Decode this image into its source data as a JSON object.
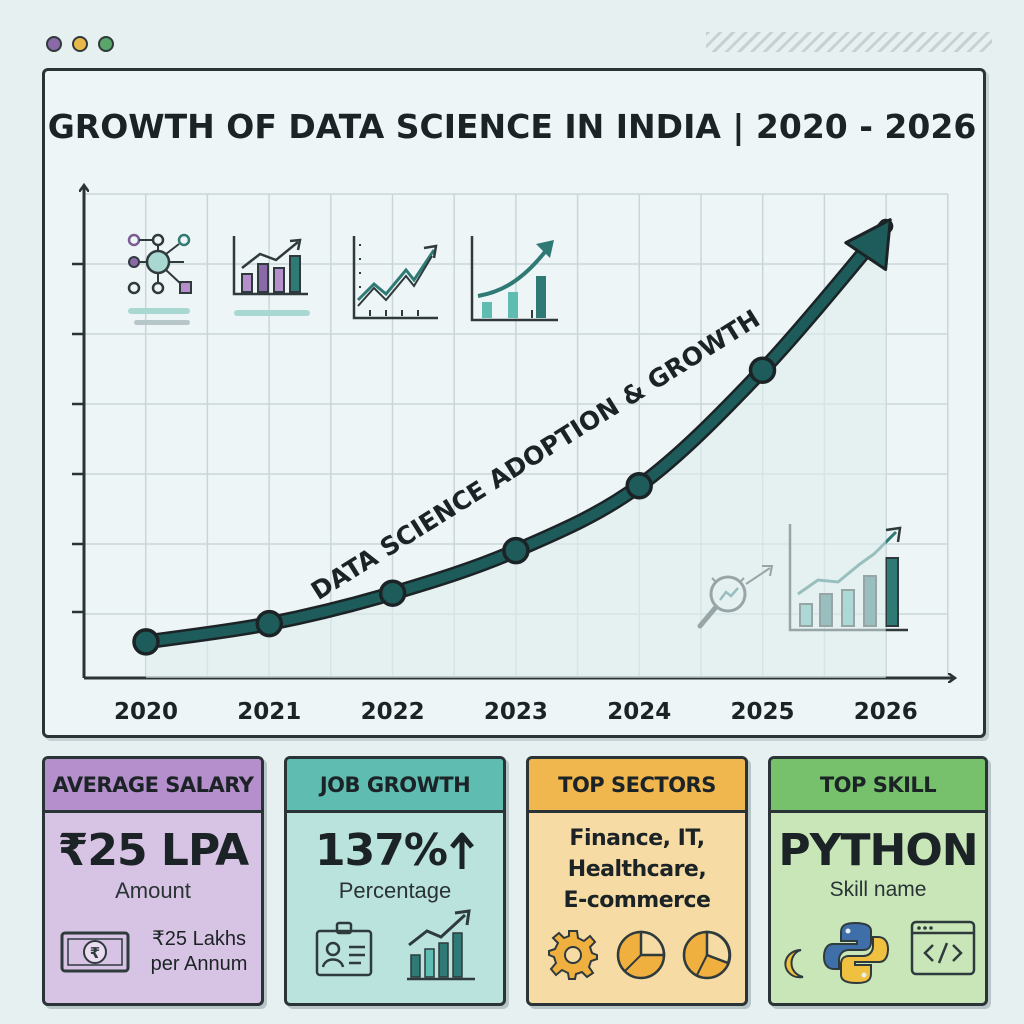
{
  "window": {
    "dot_colors": [
      "#8a6aa6",
      "#e8b84a",
      "#5aa56a"
    ]
  },
  "chart_data": {
    "type": "line",
    "title": "GROWTH OF DATA SCIENCE IN INDIA | 2020 - 2026",
    "annotation": "DATA SCIENCE ADOPTION & GROWTH",
    "x": [
      "2020",
      "2021",
      "2022",
      "2023",
      "2024",
      "2025",
      "2026"
    ],
    "series": [
      {
        "values": [
          0.5,
          1.4,
          2.9,
          5.0,
          8.2,
          13.9,
          21.0
        ],
        "point_marker_count": 6
      }
    ],
    "ylim": [
      0,
      22
    ],
    "y_tick_labels_shown": false,
    "grid": true,
    "line_color": "#1d5c5a",
    "end_arrow": true
  },
  "cards": [
    {
      "title": "AVERAGE SALARY",
      "value": "₹25 LPA",
      "sub": "Amount",
      "note_line1": "₹25 Lakhs",
      "note_line2": "per Annum",
      "header_color": "#b48fcb",
      "body_color": "#d7c3e3",
      "icons": [
        "banknote-rupee-icon"
      ]
    },
    {
      "title": "JOB GROWTH",
      "value": "137%",
      "sub": "Percentage",
      "header_color": "#5fbcb1",
      "body_color": "#b9e3dc",
      "icons": [
        "arrow-up-icon",
        "id-card-icon",
        "bar-chart-up-icon"
      ]
    },
    {
      "title": "TOP SECTORS",
      "value": "Finance, IT,\nHealthcare,\nE-commerce",
      "header_color": "#efb74e",
      "body_color": "#f6dba4",
      "icons": [
        "gear-icon",
        "pie-chart-icon",
        "pie-chart-icon"
      ]
    },
    {
      "title": "TOP SKILL",
      "value": "PYTHON",
      "sub": "Skill name",
      "header_color": "#77c06c",
      "body_color": "#c8e6b8",
      "icons": [
        "moon-icon",
        "python-logo-icon",
        "code-window-icon"
      ]
    }
  ],
  "chart_icons": [
    "network-icon",
    "bar-chart-icon",
    "line-chart-icon",
    "growth-chart-icon",
    "magnifier-chart-icon",
    "bar-chart-arrow-icon"
  ]
}
